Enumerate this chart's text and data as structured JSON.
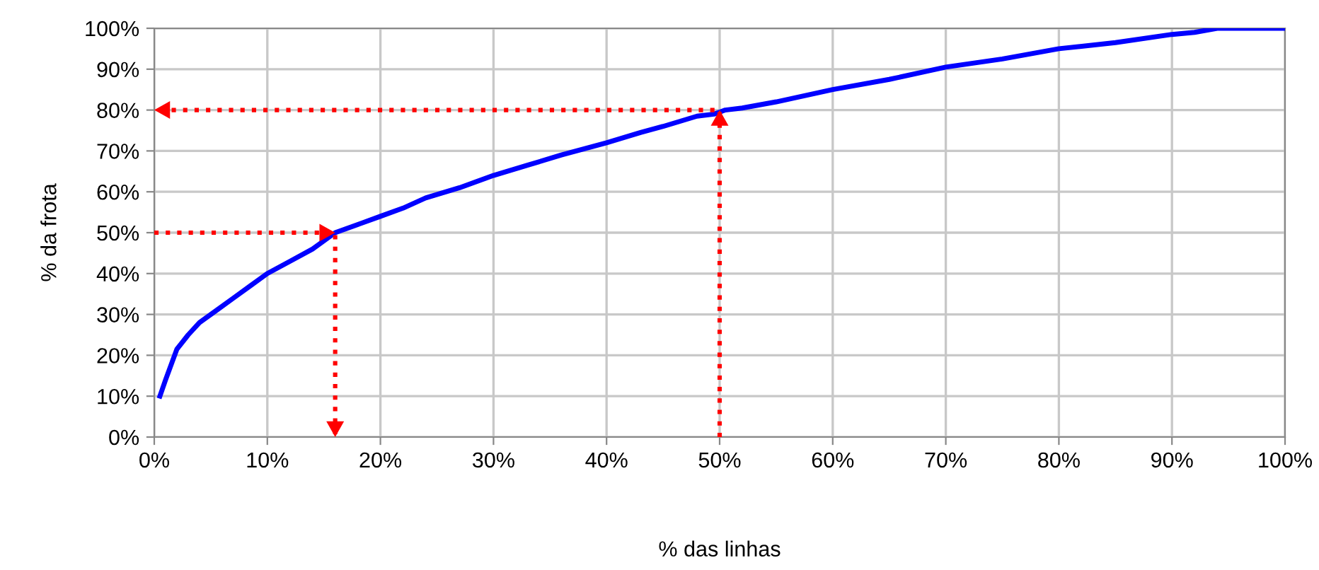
{
  "chart_data": {
    "type": "line",
    "xlabel": "% das linhas",
    "ylabel": "% da frota",
    "xlim": [
      0,
      100
    ],
    "ylim": [
      0,
      100
    ],
    "xticks": [
      {
        "value": 0,
        "label": "0%"
      },
      {
        "value": 10,
        "label": "10%"
      },
      {
        "value": 20,
        "label": "20%"
      },
      {
        "value": 30,
        "label": "30%"
      },
      {
        "value": 40,
        "label": "40%"
      },
      {
        "value": 50,
        "label": "50%"
      },
      {
        "value": 60,
        "label": "60%"
      },
      {
        "value": 70,
        "label": "70%"
      },
      {
        "value": 80,
        "label": "80%"
      },
      {
        "value": 90,
        "label": "90%"
      },
      {
        "value": 100,
        "label": "100%"
      }
    ],
    "yticks": [
      {
        "value": 0,
        "label": "0%"
      },
      {
        "value": 10,
        "label": "10%"
      },
      {
        "value": 20,
        "label": "20%"
      },
      {
        "value": 30,
        "label": "30%"
      },
      {
        "value": 40,
        "label": "40%"
      },
      {
        "value": 50,
        "label": "50%"
      },
      {
        "value": 60,
        "label": "60%"
      },
      {
        "value": 70,
        "label": "70%"
      },
      {
        "value": 80,
        "label": "80%"
      },
      {
        "value": 90,
        "label": "90%"
      },
      {
        "value": 100,
        "label": "100%"
      }
    ],
    "grid": true,
    "series": [
      {
        "color": "#0000ff",
        "line_style": "solid",
        "x": [
          0.5,
          1,
          2,
          3,
          4,
          5.5,
          7,
          8.5,
          10,
          12,
          14,
          16,
          18,
          20,
          22,
          24,
          27,
          30,
          33,
          36,
          40,
          43,
          45,
          48,
          49.5,
          50.5,
          52,
          55,
          60,
          65,
          70,
          75,
          80,
          85,
          90,
          92,
          94,
          97,
          100
        ],
        "values": [
          10,
          14,
          21.5,
          25,
          28,
          31,
          34,
          37,
          40,
          43,
          46,
          50,
          52,
          54,
          56,
          58.5,
          61,
          64,
          66.5,
          69,
          72,
          74.5,
          76,
          78.5,
          79,
          80,
          80.5,
          82,
          85,
          87.5,
          90.5,
          92.5,
          95,
          96.5,
          98.5,
          99,
          100,
          100,
          100
        ]
      },
      {
        "color": "#ff0000",
        "line_style": "dotted",
        "x": [
          0,
          16,
          16
        ],
        "values": [
          50,
          50,
          0
        ]
      },
      {
        "color": "#ff0000",
        "line_style": "dotted",
        "x": [
          50,
          50,
          0
        ],
        "values": [
          0,
          80,
          80
        ]
      }
    ]
  }
}
